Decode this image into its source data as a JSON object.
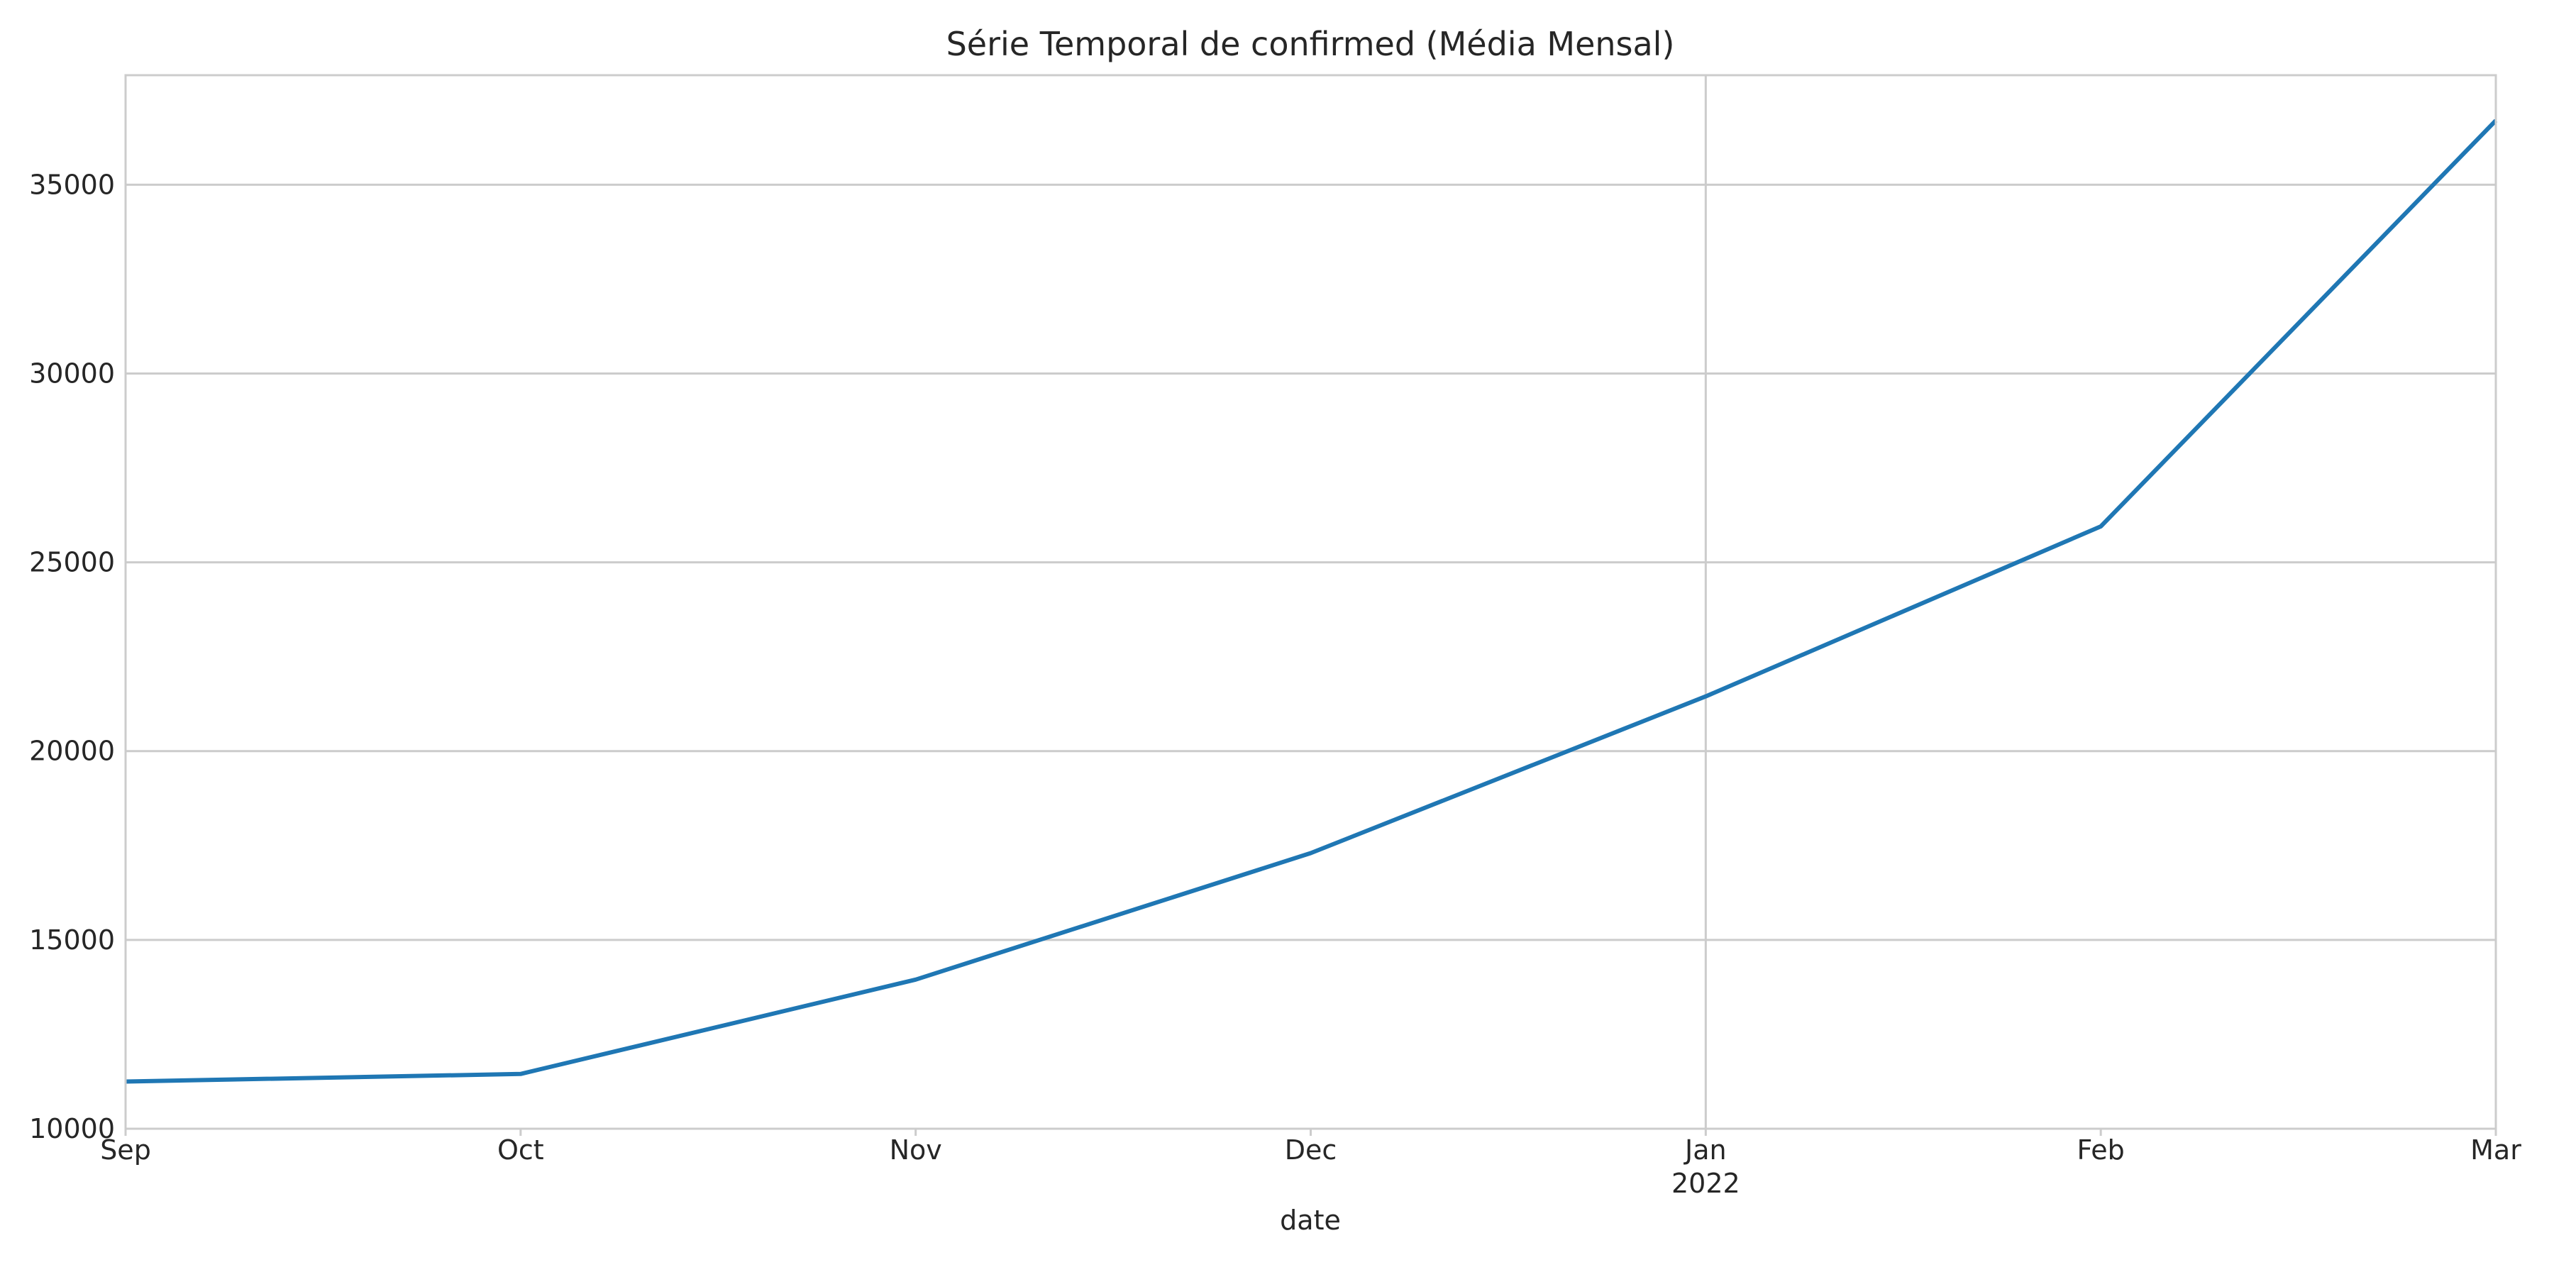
{
  "chart_data": {
    "type": "line",
    "title": "Série Temporal de confirmed (Média Mensal)",
    "xlabel": "date",
    "ylabel": "",
    "x": [
      "2021-09",
      "2021-10",
      "2021-11",
      "2021-12",
      "2022-01",
      "2022-02",
      "2022-03"
    ],
    "x_tick_labels": [
      "Sep",
      "Oct",
      "Nov",
      "Dec",
      "Jan",
      "Feb",
      "Mar"
    ],
    "x_tick_sublabels": [
      "",
      "",
      "",
      "",
      "2022",
      "",
      ""
    ],
    "y_ticks": [
      "10000",
      "15000",
      "20000",
      "25000",
      "30000",
      "35000"
    ],
    "ylim": [
      10000,
      37900
    ],
    "grid": true,
    "series": [
      {
        "values": [
          11250,
          11450,
          13950,
          17300,
          21450,
          25950,
          36700
        ],
        "color": "#1f77b4"
      }
    ],
    "colors": {
      "grid": "#cccccc",
      "frame": "#cccccc",
      "text": "#262626"
    }
  }
}
